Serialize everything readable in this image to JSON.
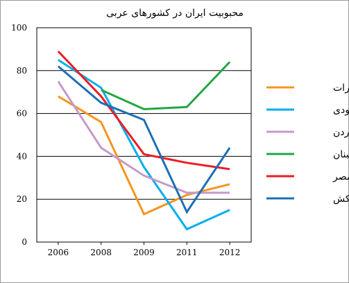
{
  "chart_data": {
    "type": "line",
    "title": "محبوبیت ایران در کشورهای عربی",
    "xlabel": "",
    "ylabel": "",
    "categories": [
      "2006",
      "2008",
      "2009",
      "2011",
      "2012"
    ],
    "ylim": [
      0,
      100
    ],
    "yticks": [
      0,
      20,
      40,
      60,
      80,
      100
    ],
    "grid": true,
    "legend_position": "right",
    "series": [
      {
        "name": "امارات",
        "color": "#f7941d",
        "values": [
          68,
          56,
          13,
          22,
          27
        ]
      },
      {
        "name": "سعودی",
        "color": "#00aeef",
        "values": [
          85,
          72,
          35,
          6,
          15
        ]
      },
      {
        "name": "اردن",
        "color": "#c59ac8",
        "values": [
          75,
          44,
          31,
          23,
          23
        ]
      },
      {
        "name": "لبنان",
        "color": "#21a644",
        "values": [
          null,
          71,
          62,
          63,
          84
        ]
      },
      {
        "name": "مصر",
        "color": "#ed1c24",
        "values": [
          89,
          68,
          41,
          37,
          34
        ]
      },
      {
        "name": "مراکش",
        "color": "#1b6fb5",
        "values": [
          82,
          65,
          57,
          14,
          44
        ]
      }
    ]
  }
}
